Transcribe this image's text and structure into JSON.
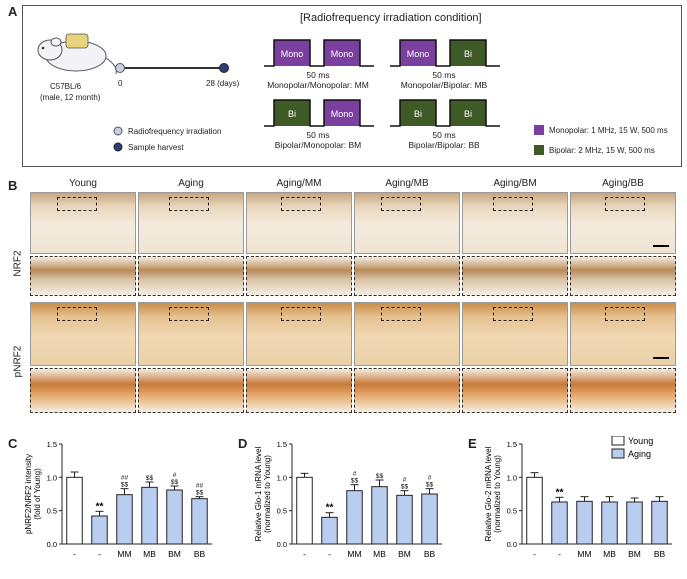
{
  "panels": {
    "a": "A",
    "b": "B",
    "c": "C",
    "d": "D",
    "e": "E"
  },
  "panel_a": {
    "title": "[Radiofrequency irradiation condition]",
    "mouse_strain": "C57BL/6",
    "mouse_desc": "(male, 12 month)",
    "timeline_start": "0",
    "timeline_end": "28 (days)",
    "legend_rf": "Radiofrequency irradiation",
    "legend_harvest": "Sample harvest",
    "gap_label": "50 ms",
    "conditions": [
      {
        "p1": "Mono",
        "p2": "Mono",
        "label": "Monopolar/Monopolar: MM"
      },
      {
        "p1": "Mono",
        "p2": "Bi",
        "label": "Monopolar/Bipolar: MB"
      },
      {
        "p1": "Bi",
        "p2": "Mono",
        "label": "Bipolar/Monopolar: BM"
      },
      {
        "p1": "Bi",
        "p2": "Bi",
        "label": "Bipolar/Bipolar: BB"
      }
    ],
    "key_mono": "Monopolar: 1 MHz, 15 W, 500 ms",
    "key_bi": "Bipolar: 2 MHz, 15 W, 500 ms",
    "colors": {
      "mono": "#7b3fa0",
      "bi": "#3e5a27",
      "timeline_rf": "#c9cde8",
      "timeline_harvest": "#2a3f78"
    }
  },
  "panel_b": {
    "columns": [
      "Young",
      "Aging",
      "Aging/MM",
      "Aging/MB",
      "Aging/BM",
      "Aging/BB"
    ],
    "rows": [
      "NRF2",
      "pNRF2"
    ]
  },
  "chart_data": [
    {
      "type": "bar",
      "panel": "C",
      "ylabel_lines": [
        "pNRF2/NRF2 intensity",
        "(fold of Young)"
      ],
      "ylim": [
        0,
        1.5
      ],
      "yticks": [
        "0.0",
        "0.5",
        "1.0",
        "1.5"
      ],
      "categories": [
        "-",
        "-",
        "MM",
        "MB",
        "BM",
        "BB"
      ],
      "values": [
        1.0,
        0.42,
        0.74,
        0.85,
        0.81,
        0.68
      ],
      "errors": [
        0.08,
        0.07,
        0.09,
        0.08,
        0.06,
        0.03
      ],
      "annotations": [
        "",
        "**",
        "##\n$$",
        "$$",
        "#\n$$",
        "##\n$$"
      ]
    },
    {
      "type": "bar",
      "panel": "D",
      "ylabel_lines": [
        "Relative Glo-1 mRNA level",
        "(normalized to Young)"
      ],
      "ylim": [
        0,
        1.5
      ],
      "yticks": [
        "0.0",
        "0.5",
        "1.0",
        "1.5"
      ],
      "categories": [
        "-",
        "-",
        "MM",
        "MB",
        "BM",
        "BB"
      ],
      "values": [
        1.0,
        0.4,
        0.8,
        0.86,
        0.73,
        0.75
      ],
      "errors": [
        0.06,
        0.07,
        0.09,
        0.1,
        0.07,
        0.08
      ],
      "annotations": [
        "",
        "**",
        "#\n$$",
        "$$",
        "#\n$$",
        "#\n$$"
      ]
    },
    {
      "type": "bar",
      "panel": "E",
      "ylabel_lines": [
        "Relative Glo-2 mRNA level",
        "(normalized to Young)"
      ],
      "ylim": [
        0,
        1.5
      ],
      "yticks": [
        "0.0",
        "0.5",
        "1.0",
        "1.5"
      ],
      "categories": [
        "-",
        "-",
        "MM",
        "MB",
        "BM",
        "BB"
      ],
      "values": [
        1.0,
        0.63,
        0.64,
        0.63,
        0.63,
        0.64
      ],
      "errors": [
        0.07,
        0.07,
        0.07,
        0.08,
        0.06,
        0.07
      ],
      "annotations": [
        "",
        "**",
        "",
        "",
        "",
        ""
      ],
      "legend": [
        "Young",
        "Aging"
      ]
    }
  ],
  "bar_colors": {
    "young": "#ffffff",
    "aging": "#b9cdf0",
    "outline": "#222222"
  }
}
